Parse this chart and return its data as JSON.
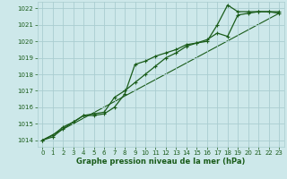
{
  "bg_color": "#cde8ea",
  "grid_color": "#aacdd0",
  "line_color": "#1a5c1a",
  "marker_color": "#1a5c1a",
  "xlabel": "Graphe pression niveau de la mer (hPa)",
  "xlabel_color": "#1a5c1a",
  "tick_color": "#1a5c1a",
  "xlim": [
    -0.5,
    23.5
  ],
  "ylim": [
    1013.6,
    1022.4
  ],
  "yticks": [
    1014,
    1015,
    1016,
    1017,
    1018,
    1019,
    1020,
    1021,
    1022
  ],
  "xticks": [
    0,
    1,
    2,
    3,
    4,
    5,
    6,
    7,
    8,
    9,
    10,
    11,
    12,
    13,
    14,
    15,
    16,
    17,
    18,
    19,
    20,
    21,
    22,
    23
  ],
  "series": [
    {
      "x": [
        0,
        1,
        2,
        3,
        4,
        5,
        6,
        7,
        8,
        9,
        10,
        11,
        12,
        13,
        14,
        15,
        16,
        17,
        18,
        19,
        20,
        21,
        22,
        23
      ],
      "y": [
        1014.0,
        1014.3,
        1014.8,
        1015.1,
        1015.5,
        1015.5,
        1015.6,
        1016.0,
        1016.8,
        1018.6,
        1018.8,
        1019.1,
        1019.3,
        1019.5,
        1019.8,
        1019.9,
        1020.0,
        1021.0,
        1022.2,
        1021.8,
        1021.8,
        1021.8,
        1021.8,
        1021.8
      ],
      "has_markers": true
    },
    {
      "x": [
        0,
        1,
        2,
        3,
        4,
        5,
        6,
        7,
        8,
        9,
        10,
        11,
        12,
        13,
        14,
        15,
        16,
        17,
        18,
        19,
        20,
        21,
        22,
        23
      ],
      "y": [
        1014.0,
        1014.2,
        1014.7,
        1015.1,
        1015.5,
        1015.6,
        1015.7,
        1016.6,
        1017.0,
        1017.5,
        1018.0,
        1018.5,
        1019.0,
        1019.3,
        1019.7,
        1019.9,
        1020.1,
        1020.5,
        1020.3,
        1021.6,
        1021.7,
        1021.8,
        1021.8,
        1021.7
      ],
      "has_markers": true
    },
    {
      "x": [
        0,
        23
      ],
      "y": [
        1014.0,
        1021.7
      ],
      "has_markers": false
    }
  ]
}
